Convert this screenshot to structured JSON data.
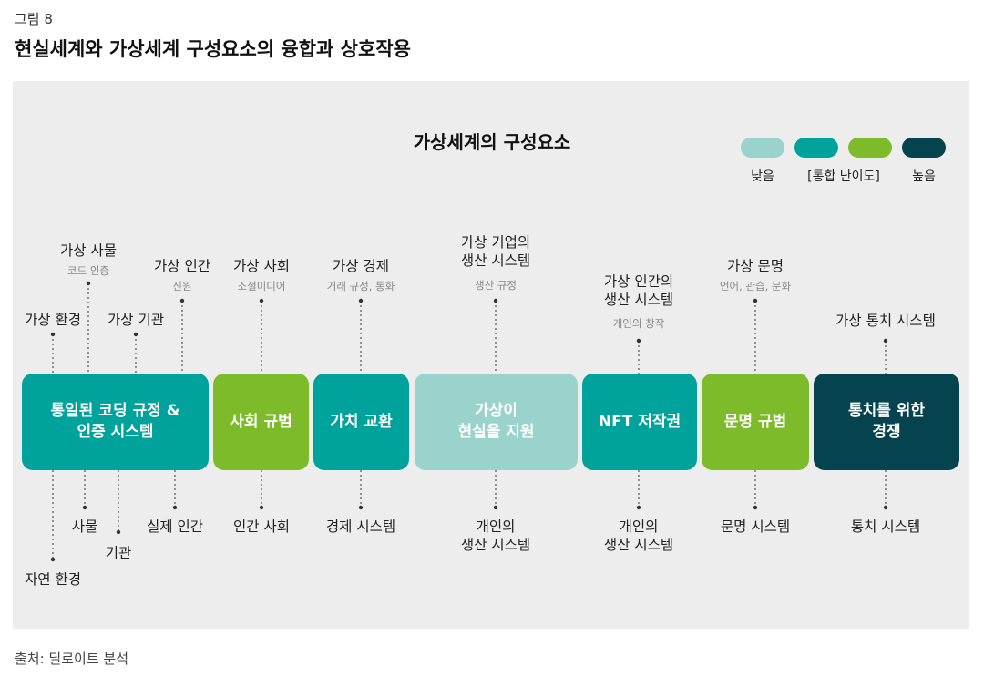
{
  "figure_label": "그림 8",
  "figure_title": "현실세계와 가상세계 구성요소의 융합과 상호작용",
  "source": "출처: 딜로이트 분석",
  "diagram_title": "가상세계의 구성요소",
  "colors": {
    "low": "#99d3cc",
    "mid": "#00a39b",
    "high": "#7dbb2a",
    "highest": "#05434f"
  },
  "legend": {
    "low": "낮음",
    "middle": "[통합 난이도]",
    "high": "높음"
  },
  "boxes": [
    {
      "label": "통일된 코딩 규정 &\n인증 시스템",
      "level": "mid"
    },
    {
      "label": "사회 규범",
      "level": "high"
    },
    {
      "label": "가치 교환",
      "level": "mid"
    },
    {
      "label": "가상이\n현실을 지원",
      "level": "low"
    },
    {
      "label": "NFT 저작권",
      "level": "mid"
    },
    {
      "label": "문명 규범",
      "level": "high"
    },
    {
      "label": "통치를 위한\n경쟁",
      "level": "highest"
    }
  ],
  "top_labels": [
    {
      "label": "가상 환경",
      "sub": ""
    },
    {
      "label": "가상 사물",
      "sub": "코드 인증"
    },
    {
      "label": "가상 기관",
      "sub": ""
    },
    {
      "label": "가상 인간",
      "sub": "신원"
    },
    {
      "label": "가상 사회",
      "sub": "소셜미디어"
    },
    {
      "label": "가상 경제",
      "sub": "거래 규정, 통화"
    },
    {
      "label": "가상 기업의\n생산 시스템",
      "sub": "생산 규정"
    },
    {
      "label": "가상 인간의\n생산 시스템",
      "sub": "개인의 창작"
    },
    {
      "label": "가상 문명",
      "sub": "언어, 관습, 문화"
    },
    {
      "label": "가상 통치 시스템",
      "sub": ""
    }
  ],
  "bottom_labels": [
    {
      "label": "자연 환경"
    },
    {
      "label": "사물"
    },
    {
      "label": "기관"
    },
    {
      "label": "실제 인간"
    },
    {
      "label": "인간 사회"
    },
    {
      "label": "경제 시스템"
    },
    {
      "label": "개인의\n생산 시스템"
    },
    {
      "label": "개인의\n생산 시스템"
    },
    {
      "label": "문명 시스템"
    },
    {
      "label": "통치 시스템"
    }
  ]
}
